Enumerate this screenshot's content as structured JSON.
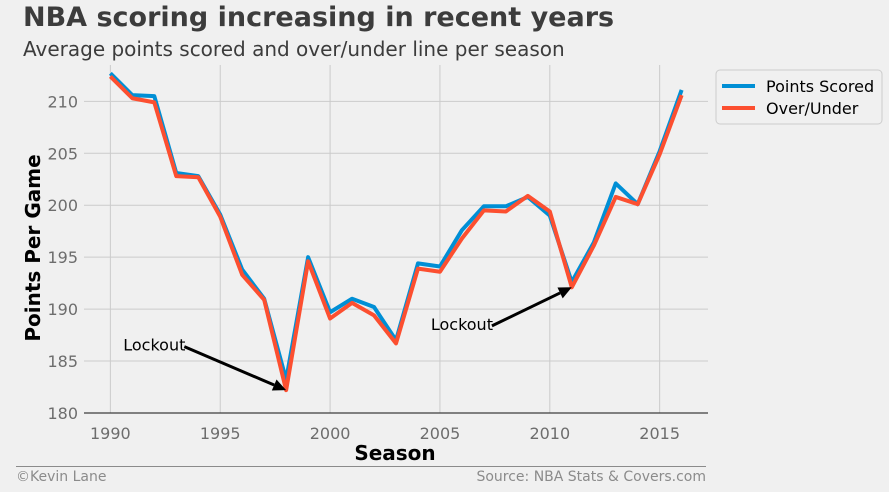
{
  "header": {
    "title": "NBA scoring increasing in recent years",
    "subtitle": "Average points scored and over/under line per season"
  },
  "footer": {
    "credit": "©Kevin Lane",
    "source": "Source: NBA Stats & Covers.com"
  },
  "chart_data": {
    "type": "line",
    "title": "NBA scoring increasing in recent years",
    "subtitle": "Average points scored and over/under line per season",
    "xlabel": "Season",
    "ylabel": "Points Per Game",
    "xlim": [
      1988.8,
      2017.2
    ],
    "ylim": [
      180,
      213.5
    ],
    "xticks": [
      1990,
      1995,
      2000,
      2005,
      2010,
      2015
    ],
    "yticks": [
      180,
      185,
      190,
      195,
      200,
      205,
      210
    ],
    "grid": true,
    "legend_position": "outside-top-right",
    "x": [
      1990,
      1991,
      1992,
      1993,
      1994,
      1995,
      1996,
      1997,
      1998,
      1999,
      2000,
      2001,
      2002,
      2003,
      2004,
      2005,
      2006,
      2007,
      2008,
      2009,
      2010,
      2011,
      2012,
      2013,
      2014,
      2015,
      2016
    ],
    "series": [
      {
        "name": "Points Scored",
        "color": "#008fd5",
        "values": [
          212.7,
          210.6,
          210.5,
          203.1,
          202.8,
          199.1,
          193.8,
          191.0,
          183.2,
          195.0,
          189.7,
          191.0,
          190.2,
          187.0,
          194.4,
          194.1,
          197.6,
          199.9,
          199.9,
          200.8,
          199.0,
          192.6,
          196.4,
          202.1,
          200.1,
          205.2,
          211.1
        ]
      },
      {
        "name": "Over/Under",
        "color": "#fc4f30",
        "values": [
          212.4,
          210.3,
          209.9,
          202.8,
          202.7,
          198.9,
          193.3,
          190.9,
          182.2,
          194.6,
          189.1,
          190.6,
          189.4,
          186.7,
          193.9,
          193.6,
          196.8,
          199.5,
          199.4,
          200.9,
          199.4,
          192.1,
          196.1,
          200.8,
          200.1,
          204.9,
          210.6
        ]
      }
    ],
    "annotations": [
      {
        "text": "Lockout",
        "x": 1998,
        "y": 182.2,
        "text_x": 1992,
        "text_y": 186
      },
      {
        "text": "Lockout",
        "x": 2011,
        "y": 192.1,
        "text_x": 2006,
        "text_y": 188
      }
    ],
    "colors": {
      "background": "#f0f0f0",
      "grid": "#cbcbcb",
      "axis": "#3c3c3c",
      "tick_label": "#6d6d6d"
    }
  }
}
